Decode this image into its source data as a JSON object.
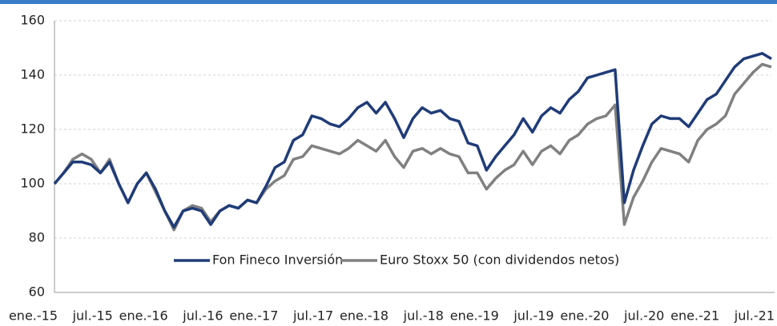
{
  "chart_data": {
    "type": "line",
    "categories": [
      "ene.-15",
      null,
      null,
      null,
      null,
      null,
      "jul.-15",
      null,
      null,
      null,
      null,
      null,
      "ene.-16",
      null,
      null,
      null,
      null,
      null,
      "jul.-16",
      null,
      null,
      null,
      null,
      null,
      "ene.-17",
      null,
      null,
      null,
      null,
      null,
      "jul.-17",
      null,
      null,
      null,
      null,
      null,
      "ene.-18",
      null,
      null,
      null,
      null,
      null,
      "jul.-18",
      null,
      null,
      null,
      null,
      null,
      "ene.-19",
      null,
      null,
      null,
      null,
      null,
      "jul.-19",
      null,
      null,
      null,
      null,
      null,
      "ene.-20",
      null,
      null,
      null,
      null,
      null,
      "jul.-20",
      null,
      null,
      null,
      null,
      null,
      "ene.-21",
      null,
      null,
      null,
      null,
      null,
      "jul.-21"
    ],
    "series": [
      {
        "name": "Fon Fineco Inversión",
        "color": "#1f3c78",
        "values": [
          100,
          104,
          108,
          108,
          107,
          104,
          108,
          100,
          93,
          100,
          104,
          98,
          90,
          84,
          90,
          91,
          90,
          85,
          90,
          92,
          91,
          94,
          93,
          99,
          106,
          108,
          116,
          118,
          125,
          124,
          122,
          121,
          124,
          128,
          130,
          126,
          130,
          124,
          117,
          124,
          128,
          126,
          127,
          124,
          123,
          115,
          114,
          105,
          110,
          114,
          118,
          124,
          119,
          125,
          128,
          126,
          131,
          134,
          139,
          140,
          141,
          142,
          93,
          105,
          114,
          122,
          125,
          124,
          124,
          121,
          126,
          131,
          133,
          138,
          143,
          146,
          147,
          148,
          146
        ]
      },
      {
        "name": "Euro Stoxx 50 (con dividendos netos)",
        "color": "#808080",
        "values": [
          100,
          104,
          109,
          111,
          109,
          104,
          109,
          100,
          93,
          100,
          104,
          97,
          90,
          83,
          90,
          92,
          91,
          86,
          90,
          92,
          91,
          94,
          93,
          98,
          101,
          103,
          109,
          110,
          114,
          113,
          112,
          111,
          113,
          116,
          114,
          112,
          116,
          110,
          106,
          112,
          113,
          111,
          113,
          111,
          110,
          104,
          104,
          98,
          102,
          105,
          107,
          112,
          107,
          112,
          114,
          111,
          116,
          118,
          122,
          124,
          125,
          129,
          85,
          95,
          101,
          108,
          113,
          112,
          111,
          108,
          116,
          120,
          122,
          125,
          133,
          137,
          141,
          144,
          143
        ]
      }
    ],
    "ylim": [
      60,
      160
    ],
    "yticks": [
      60,
      80,
      100,
      120,
      140,
      160
    ],
    "grid": true,
    "legend": "bottom"
  }
}
